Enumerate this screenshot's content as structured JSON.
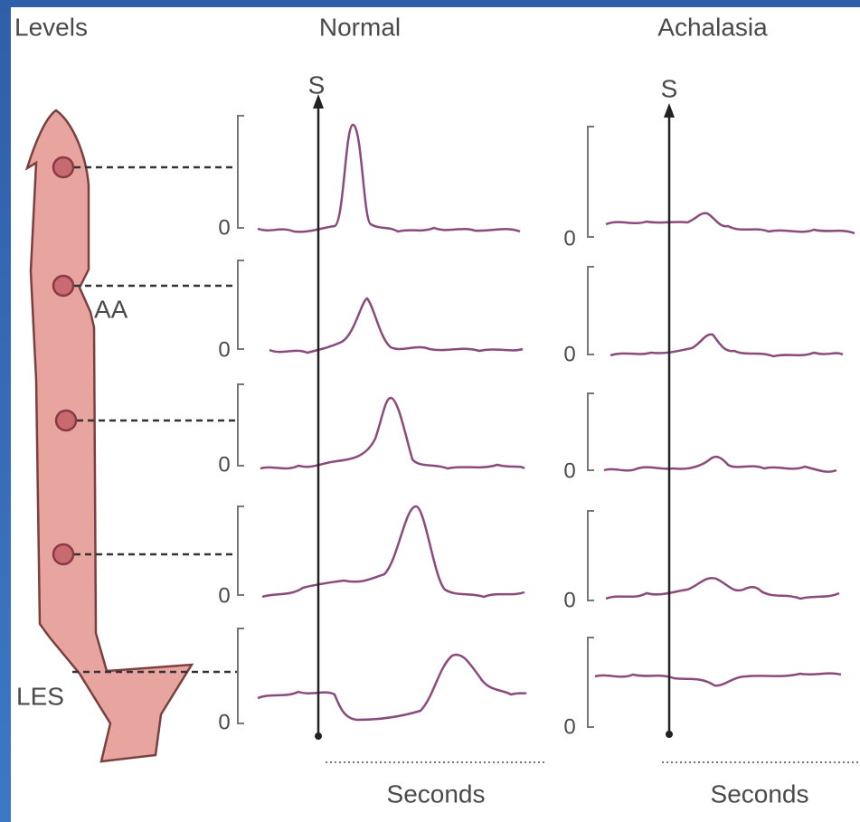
{
  "header": {
    "levels": "Levels",
    "normal": "Normal",
    "achalasia": "Achalasia"
  },
  "markers": {
    "normal_swallow": "S",
    "achalasia_swallow": "S",
    "aa": "AA",
    "les": "LES"
  },
  "zero_labels": {
    "normal": [
      "0",
      "0",
      "0",
      "0",
      "0"
    ],
    "achalasia": [
      "0",
      "0",
      "0",
      "0",
      "0"
    ]
  },
  "x_axis": {
    "normal": "Seconds",
    "achalasia": "Seconds"
  }
}
